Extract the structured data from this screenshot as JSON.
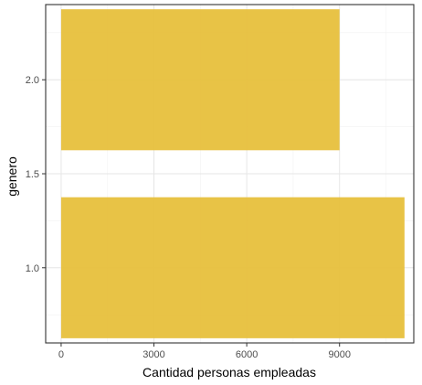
{
  "chart_data": {
    "type": "bar",
    "orientation": "horizontal",
    "xlabel": "Cantidad personas empleadas",
    "ylabel": "genero",
    "xlim": [
      -500,
      11400
    ],
    "ylim": [
      0.6,
      2.4
    ],
    "x_ticks": [
      0,
      3000,
      6000,
      9000
    ],
    "x_tick_labels": [
      "0",
      "3000",
      "6000",
      "9000"
    ],
    "y_ticks": [
      1.0,
      1.5,
      2.0
    ],
    "y_tick_labels": [
      "1.0",
      "1.5",
      "2.0"
    ],
    "bar_height": 0.75,
    "grid": true,
    "colors": {
      "bar": "#E6BE38",
      "panel_border": "#333333",
      "grid_major": "#E6E6E6",
      "grid_minor": "#F2F2F2"
    },
    "series": [
      {
        "points": [
          {
            "y": 1.0,
            "x": 11100
          },
          {
            "y": 2.0,
            "x": 9000
          }
        ]
      }
    ]
  }
}
